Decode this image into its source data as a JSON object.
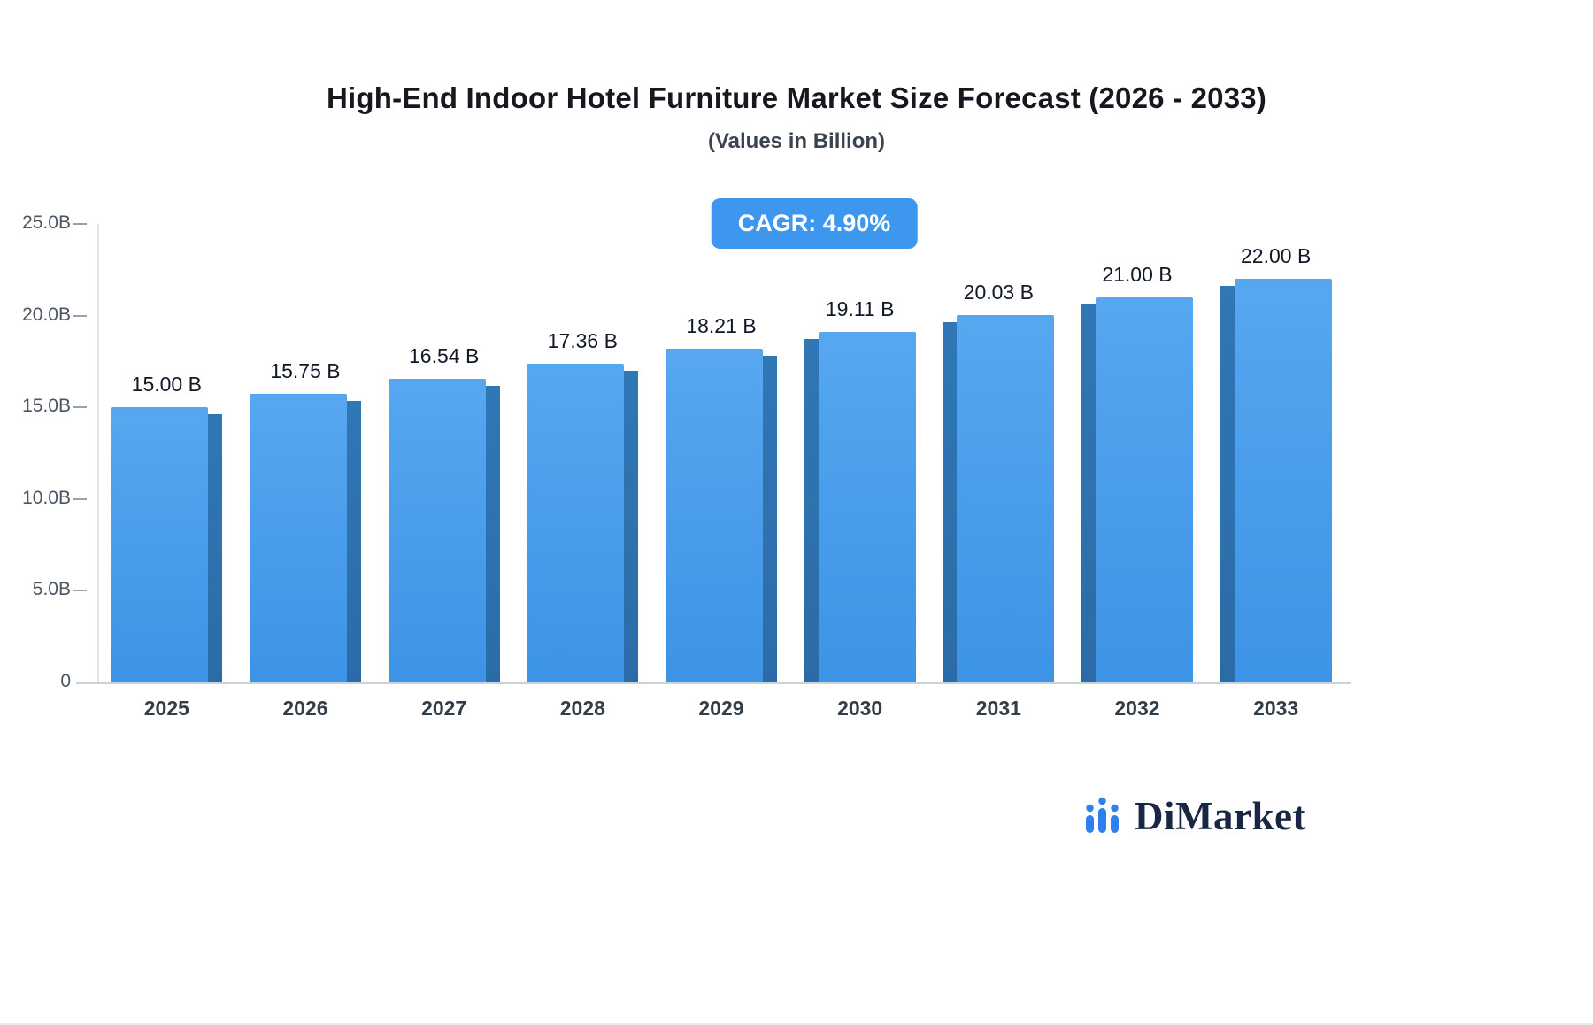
{
  "header": {
    "title": "High-End Indoor Hotel Furniture Market Size Forecast (2026 - 2033)",
    "subtitle": "(Values in Billion)"
  },
  "badge": {
    "label": "CAGR: 4.90%",
    "background_color": "#3e97ee",
    "text_color": "#ffffff"
  },
  "logo": {
    "text": "DiMarket",
    "icon": "bar-chart-icon",
    "icon_color": "#2d80ee",
    "text_color": "#1a2744"
  },
  "chart_data": {
    "type": "bar",
    "title": "High-End Indoor Hotel Furniture Market Size Forecast (2026 - 2033)",
    "subtitle": "(Values in Billion)",
    "xlabel": "",
    "ylabel": "",
    "categories": [
      "2025",
      "2026",
      "2027",
      "2028",
      "2029",
      "2030",
      "2031",
      "2032",
      "2033"
    ],
    "values": [
      15.0,
      15.75,
      16.54,
      17.36,
      18.21,
      19.11,
      20.03,
      21.0,
      22.0
    ],
    "value_labels": [
      "15.00 B",
      "15.75 B",
      "16.54 B",
      "17.36 B",
      "18.21 B",
      "19.11 B",
      "20.03 B",
      "21.00 B",
      "22.00 B"
    ],
    "y_ticks": [
      "25.0B",
      "20.0B",
      "15.0B",
      "10.0B",
      "5.0B",
      "0"
    ],
    "ylim": [
      0,
      25
    ],
    "grid": false,
    "legend": false,
    "bar_color_top": "#57a7f0",
    "bar_color_bottom": "#3d93e6",
    "bar_side_color": "#2d74b2",
    "axis_color": "#ccd2d9",
    "label_color": "#111827"
  }
}
